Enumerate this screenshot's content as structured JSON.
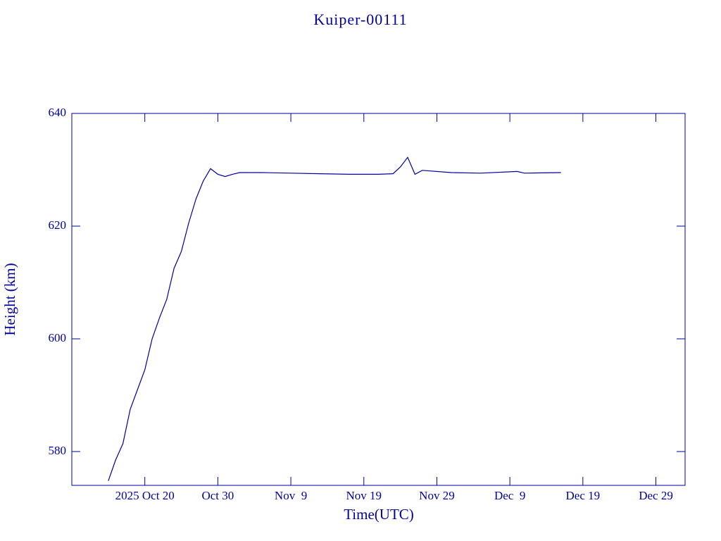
{
  "chart_data": {
    "type": "line",
    "title": "Kuiper-00111",
    "x_label": "Time(UTC)",
    "y_label": "Height (km)",
    "x": [
      "2025-10-15",
      "2025-10-16",
      "2025-10-17",
      "2025-10-18",
      "2025-10-19",
      "2025-10-20",
      "2025-10-21",
      "2025-10-22",
      "2025-10-23",
      "2025-10-24",
      "2025-10-25",
      "2025-10-26",
      "2025-10-27",
      "2025-10-28",
      "2025-10-29",
      "2025-10-30",
      "2025-10-31",
      "2025-11-01",
      "2025-11-02",
      "2025-11-05",
      "2025-11-09",
      "2025-11-13",
      "2025-11-17",
      "2025-11-21",
      "2025-11-23",
      "2025-11-24",
      "2025-11-25",
      "2025-11-26",
      "2025-11-27",
      "2025-12-01",
      "2025-12-05",
      "2025-12-10",
      "2025-12-11",
      "2025-12-16"
    ],
    "series": [
      {
        "name": "Height",
        "color": "#0000a0",
        "values": [
          574.8,
          578.5,
          581.4,
          587.5,
          591,
          594.5,
          600,
          603.7,
          607,
          612.5,
          615.5,
          620.5,
          624.8,
          628,
          630.2,
          629.2,
          628.8,
          629.2,
          629.5,
          629.5,
          629.4,
          629.3,
          629.2,
          629.2,
          629.3,
          630.5,
          632.2,
          629.2,
          629.9,
          629.5,
          629.4,
          629.7,
          629.4,
          629.5
        ]
      }
    ],
    "xlim": [
      "2025-10-10",
      "2026-01-02"
    ],
    "xticks": [
      {
        "value": "2025-10-20",
        "label": "2025 Oct 20"
      },
      {
        "value": "2025-10-30",
        "label": "Oct 30"
      },
      {
        "value": "2025-11-09",
        "label": "Nov  9"
      },
      {
        "value": "2025-11-19",
        "label": "Nov 19"
      },
      {
        "value": "2025-11-29",
        "label": "Nov 29"
      },
      {
        "value": "2025-12-09",
        "label": "Dec  9"
      },
      {
        "value": "2025-12-19",
        "label": "Dec 19"
      },
      {
        "value": "2025-12-29",
        "label": "Dec 29"
      }
    ],
    "ylim": [
      574,
      640
    ],
    "yticks": [
      580,
      600,
      620,
      640
    ]
  }
}
